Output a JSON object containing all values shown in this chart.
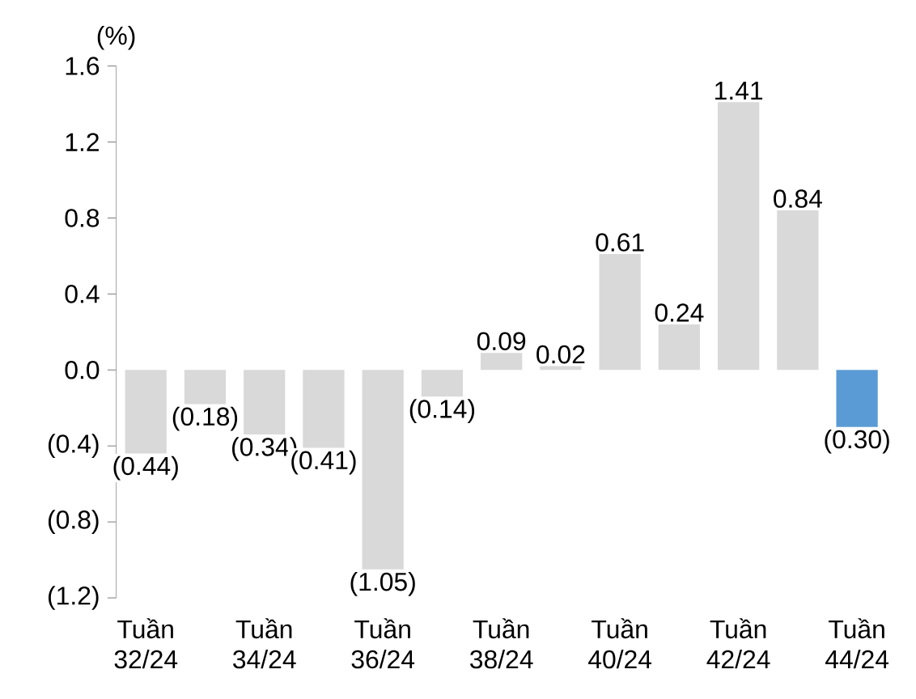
{
  "chart_data": {
    "type": "bar",
    "ylabel": "(%)",
    "categories": [
      "Tuần 32/24",
      null,
      "Tuần 34/24",
      null,
      "Tuần 36/24",
      null,
      "Tuần 38/24",
      null,
      "Tuần 40/24",
      null,
      "Tuần 42/24",
      null,
      "Tuần 44/24"
    ],
    "values": [
      -0.44,
      -0.18,
      -0.34,
      -0.41,
      -1.05,
      -0.14,
      0.09,
      0.02,
      0.61,
      0.24,
      1.41,
      0.84,
      -0.3
    ],
    "colors": [
      "#d9d9d9",
      "#d9d9d9",
      "#d9d9d9",
      "#d9d9d9",
      "#d9d9d9",
      "#d9d9d9",
      "#d9d9d9",
      "#d9d9d9",
      "#d9d9d9",
      "#d9d9d9",
      "#d9d9d9",
      "#d9d9d9",
      "#5b9bd5"
    ],
    "value_labels": [
      "(0.44)",
      "(0.18)",
      "(0.34)",
      "(0.41)",
      "(1.05)",
      "(0.14)",
      "0.09",
      "0.02",
      "0.61",
      "0.24",
      "1.41",
      "0.84",
      "(0.30)"
    ],
    "ylim": [
      -1.2,
      1.6
    ],
    "yticks": [
      {
        "value": -1.2,
        "label": "(1.2)"
      },
      {
        "value": -0.8,
        "label": "(0.8)"
      },
      {
        "value": -0.4,
        "label": "(0.4)"
      },
      {
        "value": 0,
        "label": "0.0"
      },
      {
        "value": 0.4,
        "label": "0.4"
      },
      {
        "value": 0.8,
        "label": "0.8"
      },
      {
        "value": 1.2,
        "label": "1.2"
      },
      {
        "value": 1.6,
        "label": "1.6"
      }
    ],
    "grid": false
  }
}
